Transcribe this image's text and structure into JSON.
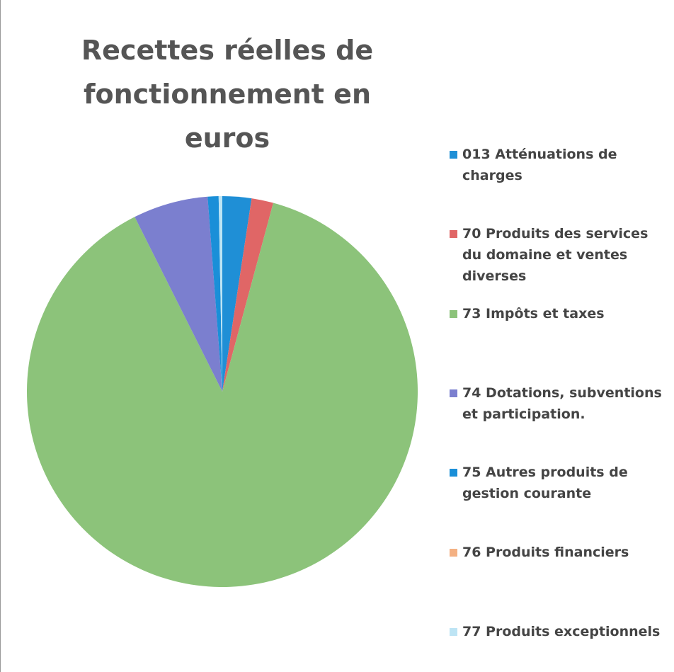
{
  "chart_data": {
    "type": "pie",
    "title": "Recettes réelles de fonctionnement en euros",
    "categories": [
      "013 Atténuations de charges",
      "70 Produits des services du domaine et ventes diverses",
      "73 Impôts et taxes",
      "74 Dotations, subventions et participation.",
      "75 Autres produits de gestion courante",
      "76 Produits financiers",
      "77 Produits exceptionnels"
    ],
    "values": [
      2.4,
      1.8,
      88.4,
      6.2,
      0.9,
      0,
      0.3
    ],
    "colors": [
      "#1f8fd6",
      "#e06666",
      "#8cc37a",
      "#7b7fcf",
      "#1a8fd8",
      "#f4b183",
      "#bde4f4"
    ],
    "legend": "right"
  }
}
